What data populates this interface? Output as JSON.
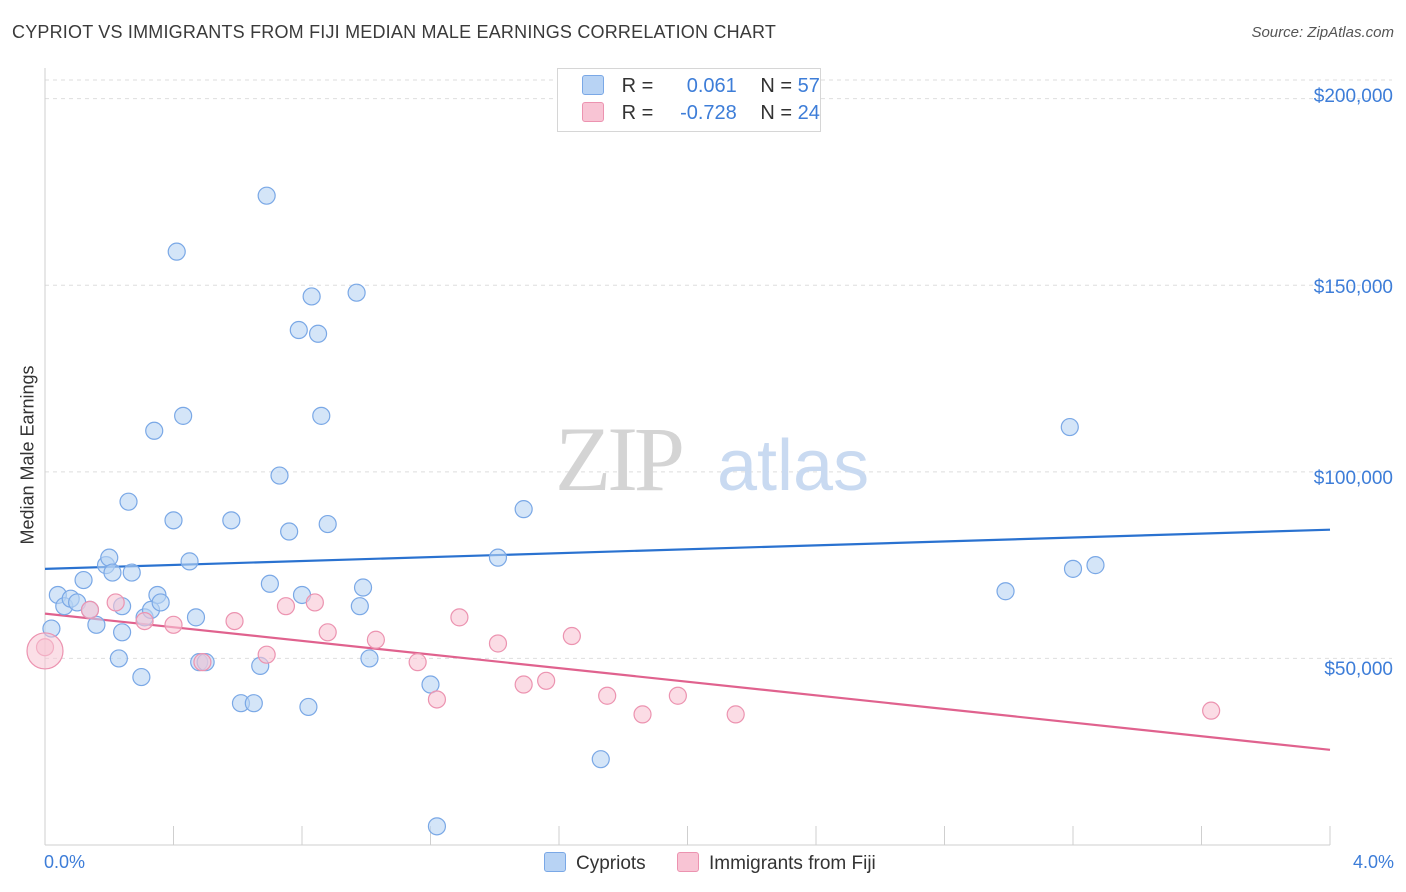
{
  "title": "CYPRIOT VS IMMIGRANTS FROM FIJI MEDIAN MALE EARNINGS CORRELATION CHART",
  "source": "Source: ZipAtlas.com",
  "watermark": {
    "zip": "ZIP",
    "atlas": "atlas"
  },
  "legend": {
    "rows": [
      {
        "r_label": "R =",
        "r_value": "0.061",
        "n_label": "N =",
        "n_value": "57"
      },
      {
        "r_label": "R =",
        "r_value": "-0.728",
        "n_label": "N =",
        "n_value": "24"
      }
    ]
  },
  "bottom_legend": {
    "cypriots": "Cypriots",
    "fiji": "Immigrants from Fiji"
  },
  "colors": {
    "blue_fill": "#b8d3f4",
    "blue_stroke": "#7aa8e6",
    "blue_line": "#2a72d0",
    "pink_fill": "#f8c4d4",
    "pink_stroke": "#ec93b0",
    "pink_line": "#e0628e",
    "axis_text": "#3d7dd8",
    "grid": "#dedede"
  },
  "chart_data": {
    "type": "scatter",
    "title": "CYPRIOT VS IMMIGRANTS FROM FIJI MEDIAN MALE EARNINGS CORRELATION CHART",
    "xlabel": "",
    "ylabel": "Median Male Earnings",
    "xlim": [
      0,
      4
    ],
    "ylim": [
      0,
      205000
    ],
    "x_tick_labels": [
      "0.0%",
      "4.0%"
    ],
    "y_ticks": [
      50000,
      100000,
      150000,
      200000
    ],
    "y_tick_labels": [
      "$50,000",
      "$100,000",
      "$150,000",
      "$200,000"
    ],
    "grid": true,
    "series": [
      {
        "name": "Cypriots",
        "color": "blue",
        "trend": [
          [
            0,
            74000
          ],
          [
            4,
            84500
          ]
        ],
        "points": [
          [
            0.02,
            58000
          ],
          [
            0.04,
            67000
          ],
          [
            0.06,
            64000
          ],
          [
            0.08,
            66000
          ],
          [
            0.1,
            65000
          ],
          [
            0.12,
            71000
          ],
          [
            0.14,
            63000
          ],
          [
            0.16,
            59000
          ],
          [
            0.19,
            75000
          ],
          [
            0.2,
            77000
          ],
          [
            0.21,
            73000
          ],
          [
            0.23,
            50000
          ],
          [
            0.24,
            57000
          ],
          [
            0.26,
            92000
          ],
          [
            0.27,
            73000
          ],
          [
            0.3,
            45000
          ],
          [
            0.31,
            61000
          ],
          [
            0.33,
            63000
          ],
          [
            0.34,
            111000
          ],
          [
            0.35,
            67000
          ],
          [
            0.36,
            65000
          ],
          [
            0.4,
            87000
          ],
          [
            0.41,
            159000
          ],
          [
            0.43,
            115000
          ],
          [
            0.47,
            61000
          ],
          [
            0.48,
            49000
          ],
          [
            0.5,
            49000
          ],
          [
            0.58,
            87000
          ],
          [
            0.61,
            38000
          ],
          [
            0.65,
            38000
          ],
          [
            0.67,
            48000
          ],
          [
            0.69,
            174000
          ],
          [
            0.7,
            70000
          ],
          [
            0.73,
            99000
          ],
          [
            0.76,
            84000
          ],
          [
            0.79,
            138000
          ],
          [
            0.8,
            67000
          ],
          [
            0.82,
            37000
          ],
          [
            0.83,
            147000
          ],
          [
            0.85,
            137000
          ],
          [
            0.86,
            115000
          ],
          [
            0.88,
            86000
          ],
          [
            0.97,
            148000
          ],
          [
            0.98,
            64000
          ],
          [
            0.99,
            69000
          ],
          [
            1.01,
            50000
          ],
          [
            1.2,
            43000
          ],
          [
            1.22,
            5000
          ],
          [
            1.41,
            77000
          ],
          [
            1.49,
            90000
          ],
          [
            1.73,
            23000
          ],
          [
            2.99,
            68000
          ],
          [
            3.19,
            112000
          ],
          [
            3.2,
            74000
          ],
          [
            3.27,
            75000
          ],
          [
            0.45,
            76000
          ],
          [
            0.24,
            64000
          ]
        ]
      },
      {
        "name": "Immigrants from Fiji",
        "color": "pink",
        "trend": [
          [
            0,
            62000
          ],
          [
            4,
            25500
          ]
        ],
        "points": [
          [
            0.0,
            53000
          ],
          [
            0.14,
            63000
          ],
          [
            0.22,
            65000
          ],
          [
            0.31,
            60000
          ],
          [
            0.4,
            59000
          ],
          [
            0.49,
            49000
          ],
          [
            0.59,
            60000
          ],
          [
            0.69,
            51000
          ],
          [
            0.75,
            64000
          ],
          [
            0.84,
            65000
          ],
          [
            0.88,
            57000
          ],
          [
            1.03,
            55000
          ],
          [
            1.16,
            49000
          ],
          [
            1.22,
            39000
          ],
          [
            1.29,
            61000
          ],
          [
            1.41,
            54000
          ],
          [
            1.49,
            43000
          ],
          [
            1.56,
            44000
          ],
          [
            1.64,
            56000
          ],
          [
            1.75,
            40000
          ],
          [
            1.86,
            35000
          ],
          [
            1.97,
            40000
          ],
          [
            2.15,
            35000
          ],
          [
            3.63,
            36000
          ]
        ]
      }
    ]
  }
}
